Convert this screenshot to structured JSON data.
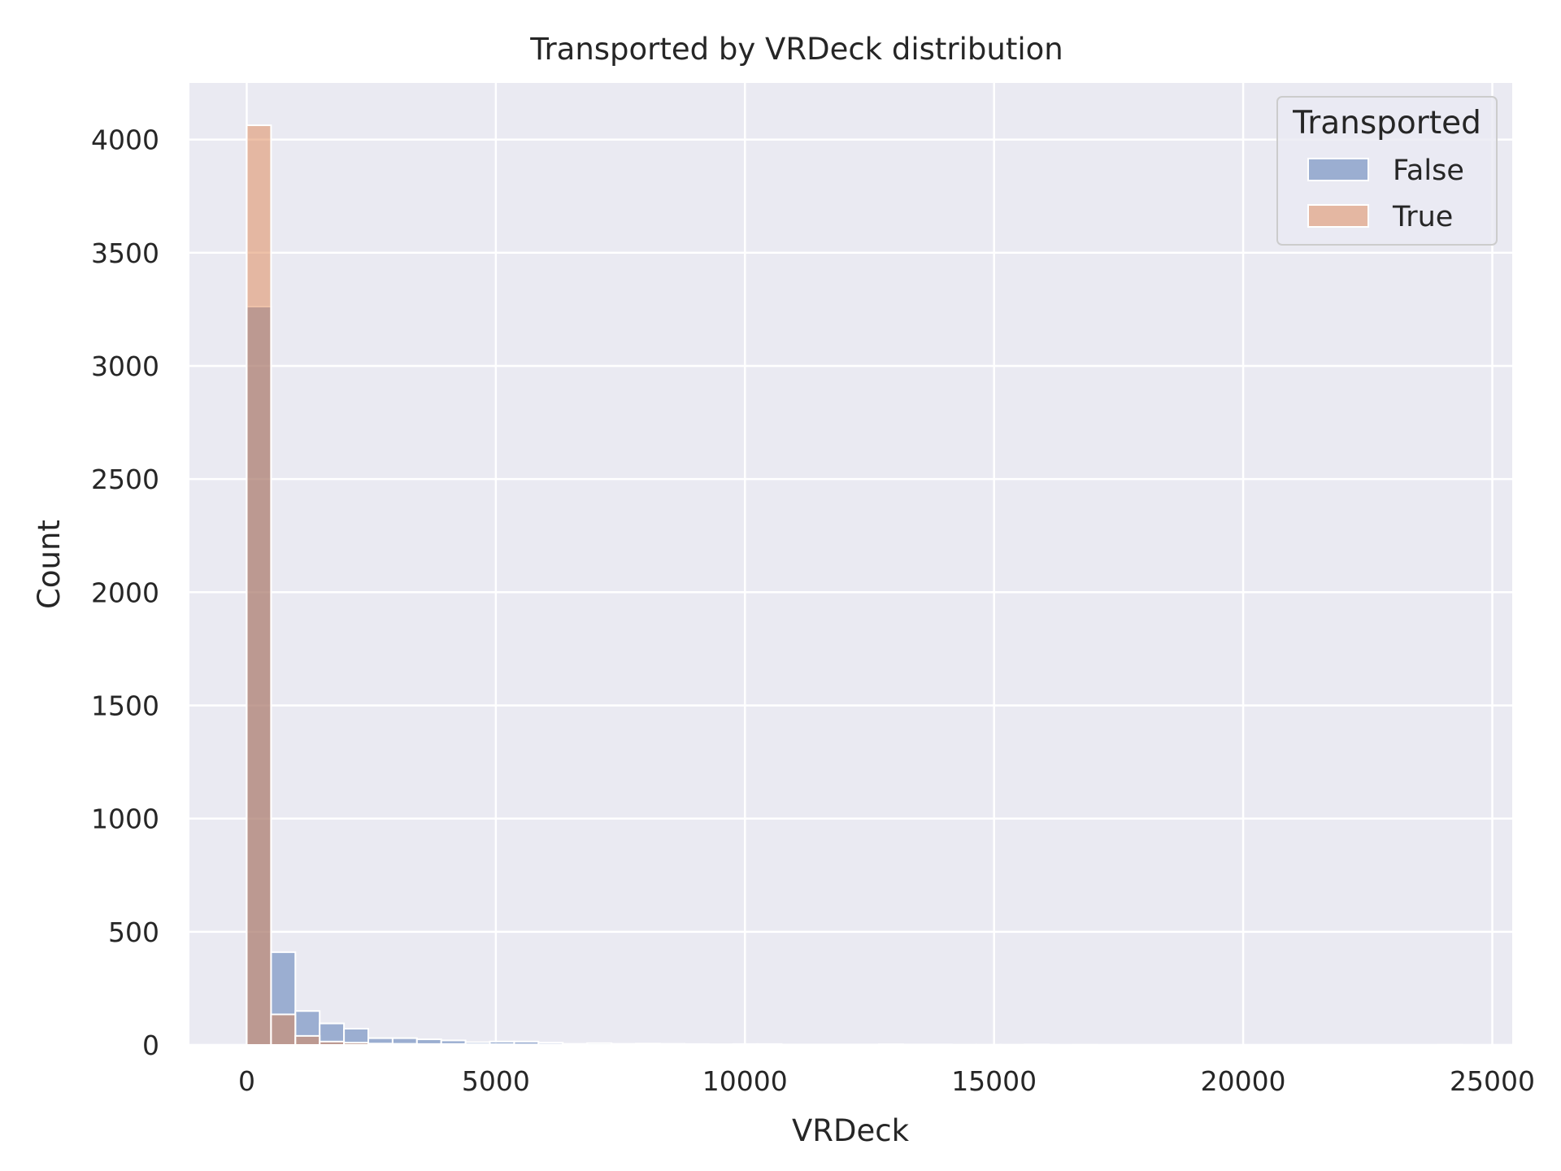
{
  "chart_data": {
    "type": "bar",
    "title": "Transported by VRDeck distribution",
    "xlabel": "VRDeck",
    "ylabel": "Count",
    "xlim": [
      -1150,
      25400
    ],
    "ylim": [
      0,
      4250
    ],
    "xticks": [
      0,
      5000,
      10000,
      15000,
      20000,
      25000
    ],
    "yticks": [
      0,
      500,
      1000,
      1500,
      2000,
      2500,
      3000,
      3500,
      4000
    ],
    "grid": true,
    "legend": {
      "title": "Transported",
      "placement": "top-right"
    },
    "bin_width": 488,
    "bin_start": 0,
    "series": [
      {
        "name": "False",
        "color": "#4c72b0",
        "values": [
          3262,
          410,
          150,
          95,
          72,
          30,
          30,
          25,
          20,
          12,
          15,
          15,
          10,
          5,
          8,
          5,
          6,
          5,
          4,
          3,
          4,
          4,
          2,
          2,
          2,
          2,
          3,
          2,
          2,
          1,
          1,
          1,
          2,
          0,
          1,
          0,
          0,
          0,
          0,
          0,
          0,
          0,
          0,
          0,
          0,
          0,
          0,
          0,
          0,
          1
        ]
      },
      {
        "name": "True",
        "color": "#dd8452",
        "values": [
          4063,
          135,
          40,
          15,
          10,
          6,
          5,
          4,
          4,
          3,
          3,
          2,
          2,
          2,
          1,
          1,
          1,
          1,
          1,
          0,
          1,
          0,
          0,
          1,
          0,
          0,
          0,
          0,
          0,
          0,
          0,
          0,
          0,
          0,
          0,
          0,
          0,
          0,
          0,
          0,
          0,
          0,
          0,
          0,
          0,
          0,
          0,
          0,
          0,
          0
        ]
      }
    ]
  }
}
